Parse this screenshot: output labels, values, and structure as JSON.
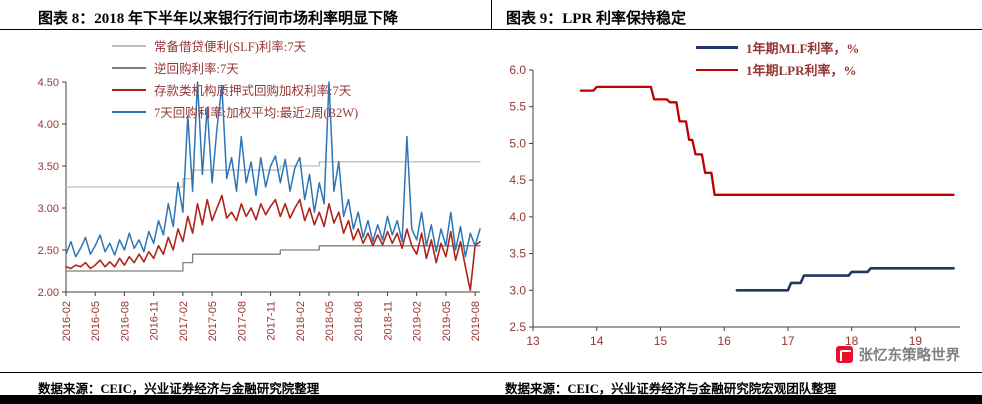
{
  "watermark": {
    "text": "张忆东策略世界"
  },
  "footer": {
    "left_source": "数据来源：CEIC，兴业证券经济与金融研究院整理",
    "right_source": "数据来源：CEIC，兴业证券经济与金融研究院宏观团队整理"
  },
  "colors": {
    "axis_label": "#953735",
    "legend_text": "#953735",
    "axis_line": "#404040",
    "slf_gray": "#bfbfbf",
    "reverse_repo_gray": "#7f7f7f",
    "dr007_red": "#b02418",
    "r007_blue": "#2e75b6",
    "mlf_navy": "#1f3864",
    "lpr_red": "#c00000",
    "bottom_bar": "#000000",
    "watermark_red": "#e8112d"
  },
  "chart_data": [
    {
      "type": "line",
      "title": "图表 8：2018 年下半年以来银行行间市场利率明显下降",
      "xlabel": "",
      "ylabel": "",
      "ylim": [
        2.0,
        4.5
      ],
      "yticks": [
        2.0,
        2.5,
        3.0,
        3.5,
        4.0,
        4.5
      ],
      "ytick_labels": [
        "2.00",
        "2.50",
        "3.00",
        "3.50",
        "4.00",
        "4.50"
      ],
      "x_range": [
        0,
        42.5
      ],
      "x_unit": "months since 2016-02",
      "xticks": [
        0,
        3,
        6,
        9,
        12,
        15,
        18,
        21,
        24,
        27,
        30,
        33,
        36,
        39,
        42
      ],
      "xtick_labels": [
        "2016-02",
        "2016-05",
        "2016-08",
        "2016-11",
        "2017-02",
        "2017-05",
        "2017-08",
        "2017-11",
        "2018-02",
        "2018-05",
        "2018-08",
        "2018-11",
        "2019-02",
        "2019-05",
        "2019-08"
      ],
      "grid": false,
      "legend_position": "top-left",
      "series": [
        {
          "name": "常备借贷便利(SLF)利率:7天",
          "color": "#bfbfbf",
          "width": 1.3,
          "x": [
            0,
            12,
            12,
            13,
            13,
            22,
            22,
            26,
            26,
            42.5
          ],
          "y": [
            3.25,
            3.25,
            3.35,
            3.35,
            3.45,
            3.45,
            3.5,
            3.5,
            3.55,
            3.55
          ]
        },
        {
          "name": "逆回购利率:7天",
          "color": "#7f7f7f",
          "width": 1.3,
          "x": [
            0,
            12,
            12,
            13,
            13,
            22,
            22,
            26,
            26,
            42.5
          ],
          "y": [
            2.25,
            2.25,
            2.35,
            2.35,
            2.45,
            2.45,
            2.5,
            2.5,
            2.55,
            2.55
          ]
        },
        {
          "name": "存款类机构质押式回购加权利率:7天",
          "color": "#b02418",
          "width": 1.6,
          "x_start": 0,
          "x_step": 0.5,
          "y": [
            2.3,
            2.28,
            2.32,
            2.3,
            2.35,
            2.28,
            2.32,
            2.38,
            2.3,
            2.36,
            2.3,
            2.4,
            2.32,
            2.42,
            2.35,
            2.45,
            2.36,
            2.48,
            2.4,
            2.55,
            2.45,
            2.65,
            2.5,
            2.75,
            2.6,
            2.9,
            2.7,
            3.05,
            2.8,
            3.1,
            2.85,
            3.0,
            3.15,
            2.88,
            2.95,
            2.85,
            3.05,
            2.9,
            3.0,
            2.86,
            3.05,
            2.92,
            3.02,
            3.1,
            2.9,
            3.05,
            2.88,
            3.0,
            3.1,
            2.85,
            3.0,
            2.8,
            2.95,
            2.78,
            3.05,
            2.82,
            2.95,
            2.7,
            2.85,
            2.62,
            2.75,
            2.58,
            2.7,
            2.55,
            2.68,
            2.56,
            2.72,
            2.58,
            2.7,
            2.52,
            2.75,
            2.55,
            2.45,
            2.7,
            2.4,
            2.62,
            2.35,
            2.58,
            2.42,
            2.72,
            2.38,
            2.6,
            2.3,
            2.02,
            2.55,
            2.6
          ]
        },
        {
          "name": "7天回购利率:加权平均:最近2周(B2W)",
          "color": "#2e75b6",
          "width": 1.5,
          "x_start": 0,
          "x_step": 0.5,
          "y": [
            2.45,
            2.6,
            2.42,
            2.52,
            2.65,
            2.45,
            2.55,
            2.68,
            2.48,
            2.58,
            2.44,
            2.62,
            2.5,
            2.7,
            2.52,
            2.62,
            2.48,
            2.72,
            2.58,
            2.85,
            2.68,
            3.05,
            2.78,
            3.3,
            2.95,
            4.1,
            3.2,
            4.5,
            3.4,
            4.2,
            3.3,
            3.95,
            4.45,
            3.35,
            3.6,
            3.2,
            3.85,
            3.3,
            3.55,
            3.15,
            3.6,
            3.25,
            3.5,
            3.62,
            3.3,
            3.58,
            3.2,
            3.48,
            3.6,
            3.1,
            3.4,
            2.95,
            3.3,
            3.05,
            4.5,
            3.2,
            3.55,
            2.9,
            3.1,
            2.75,
            2.95,
            2.65,
            2.85,
            2.6,
            2.8,
            2.62,
            2.9,
            2.68,
            2.85,
            2.6,
            3.85,
            2.75,
            2.62,
            2.95,
            2.55,
            2.8,
            2.48,
            2.75,
            2.55,
            2.95,
            2.5,
            2.78,
            2.42,
            2.7,
            2.55,
            2.75
          ]
        }
      ]
    },
    {
      "type": "line",
      "title": "图表 9：LPR 利率保持稳定",
      "xlabel": "",
      "ylabel": "",
      "ylim": [
        2.5,
        6.0
      ],
      "yticks": [
        2.5,
        3.0,
        3.5,
        4.0,
        4.5,
        5.0,
        5.5,
        6.0
      ],
      "ytick_labels": [
        "2.5",
        "3.0",
        "3.5",
        "4.0",
        "4.5",
        "5.0",
        "5.5",
        "6.0"
      ],
      "x_range": [
        13,
        19.7
      ],
      "x_unit": "year (20XX)",
      "xticks": [
        13,
        14,
        15,
        16,
        17,
        18,
        19
      ],
      "xtick_labels": [
        "13",
        "14",
        "15",
        "16",
        "17",
        "18",
        "19"
      ],
      "grid": false,
      "legend_position": "top-right",
      "series": [
        {
          "name": "1年期MLF利率，%",
          "color": "#1f3864",
          "width": 2.6,
          "x": [
            16.2,
            17.0,
            17.05,
            17.2,
            17.25,
            17.95,
            18.0,
            18.25,
            18.3,
            19.6
          ],
          "y": [
            3.0,
            3.0,
            3.1,
            3.1,
            3.2,
            3.2,
            3.25,
            3.25,
            3.3,
            3.3
          ]
        },
        {
          "name": "1年期LPR利率，%",
          "color": "#c00000",
          "width": 2.3,
          "x": [
            13.75,
            13.95,
            14.0,
            14.85,
            14.9,
            15.1,
            15.15,
            15.25,
            15.3,
            15.4,
            15.45,
            15.5,
            15.55,
            15.65,
            15.7,
            15.8,
            15.85,
            19.6
          ],
          "y": [
            5.72,
            5.72,
            5.77,
            5.77,
            5.6,
            5.6,
            5.56,
            5.56,
            5.3,
            5.3,
            5.05,
            5.05,
            4.85,
            4.85,
            4.6,
            4.6,
            4.3,
            4.3
          ]
        }
      ]
    }
  ]
}
